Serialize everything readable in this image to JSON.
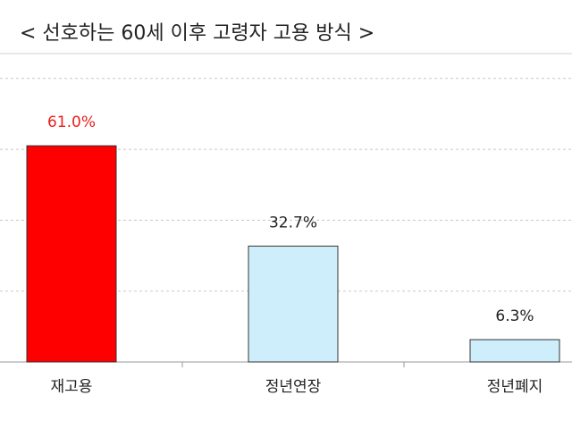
{
  "chart_data": {
    "type": "bar",
    "title": "< 선호하는 60세 이후 고령자 고용 방식 >",
    "categories": [
      "재고용",
      "정년연장",
      "정년폐지"
    ],
    "values": [
      61.0,
      32.7,
      6.3
    ],
    "value_labels": [
      "61.0%",
      "32.7%",
      "6.3%"
    ],
    "colors": [
      "#ff0000",
      "#cdeefa",
      "#cdeefa"
    ],
    "value_label_colors": [
      "#e8201c",
      "#222222",
      "#222222"
    ],
    "ylim": [
      0,
      87
    ],
    "yticks": [
      20,
      40,
      60,
      80
    ],
    "grid": true
  }
}
